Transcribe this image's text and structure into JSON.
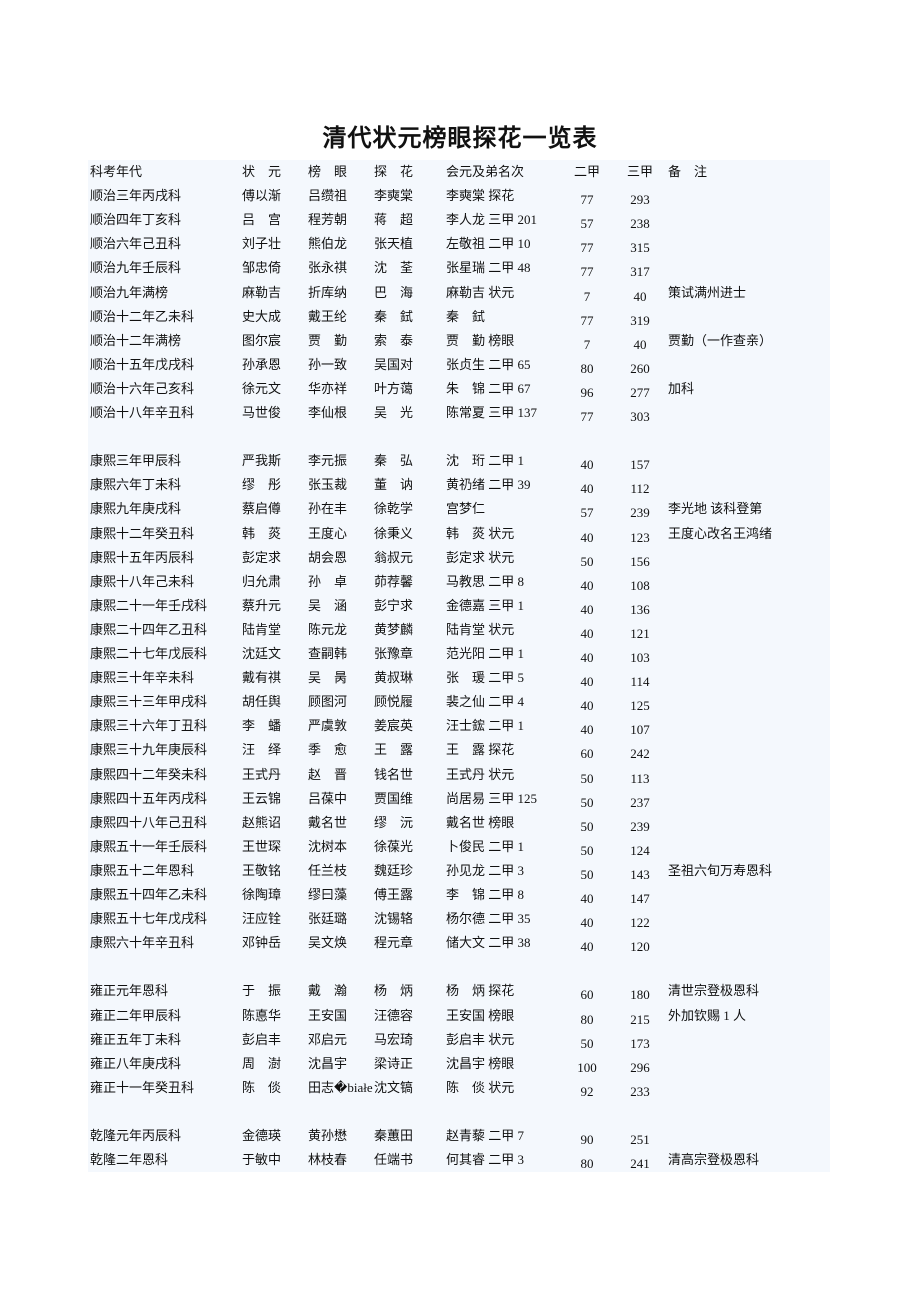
{
  "title": "清代状元榜眼探花一览表",
  "header": [
    "科考年代",
    "状　元",
    "榜　眼",
    "探　花",
    "会元及弟名次",
    "二甲",
    "三甲",
    "备　注"
  ],
  "sections": [
    {
      "rows": [
        [
          "顺治三年丙戌科",
          "傅以渐",
          "吕缵祖",
          "李奭棠",
          "李奭棠 探花",
          "77",
          "293",
          ""
        ],
        [
          "顺治四年丁亥科",
          "吕　宫",
          "程芳朝",
          "蒋　超",
          "李人龙 三甲 201",
          "57",
          "238",
          ""
        ],
        [
          "顺治六年己丑科",
          "刘子壮",
          "熊伯龙",
          "张天植",
          "左敬祖 二甲 10",
          "77",
          "315",
          ""
        ],
        [
          "顺治九年壬辰科",
          "邹忠倚",
          "张永祺",
          "沈　荃",
          "张星瑞 二甲 48",
          "77",
          "317",
          ""
        ],
        [
          "顺治九年满榜",
          "麻勒吉",
          "折库纳",
          "巴　海",
          "麻勒吉 状元",
          "7",
          "40",
          "策试满州进士"
        ],
        [
          "顺治十二年乙未科",
          "史大成",
          "戴王纶",
          "秦　鉽",
          "秦　鉽",
          "77",
          "319",
          ""
        ],
        [
          "顺治十二年满榜",
          "图尔宸",
          "贾　勤",
          "索　泰",
          "贾　勤 榜眼",
          "7",
          "40",
          "贾勤（一作查亲）"
        ],
        [
          "顺治十五年戊戌科",
          "孙承恩",
          "孙一致",
          "吴国对",
          "张贞生 二甲 65",
          "80",
          "260",
          ""
        ],
        [
          "顺治十六年己亥科",
          "徐元文",
          "华亦祥",
          "叶方蔼",
          "朱　锦 二甲 67",
          "96",
          "277",
          "加科"
        ],
        [
          "顺治十八年辛丑科",
          "马世俊",
          "李仙根",
          "吴　光",
          "陈常夏 三甲 137",
          "77",
          "303",
          ""
        ]
      ]
    },
    {
      "rows": [
        [
          "康熙三年甲辰科",
          "严我斯",
          "李元振",
          "秦　弘",
          "沈　珩 二甲 1",
          "40",
          "157",
          ""
        ],
        [
          "康熙六年丁未科",
          "缪　彤",
          "张玉裁",
          "董　讷",
          "黄礽绪 二甲 39",
          "40",
          "112",
          ""
        ],
        [
          "康熙九年庚戌科",
          "蔡启僔",
          "孙在丰",
          "徐乾学",
          "宫梦仁",
          "57",
          "239",
          "李光地 该科登第"
        ],
        [
          "康熙十二年癸丑科",
          "韩　菼",
          "王度心",
          "徐秉义",
          "韩　菼 状元",
          "40",
          "123",
          "王度心改名王鸿绪"
        ],
        [
          "康熙十五年丙辰科",
          "彭定求",
          "胡会恩",
          "翁叔元",
          "彭定求 状元",
          "50",
          "156",
          ""
        ],
        [
          "康熙十八年己未科",
          "归允肃",
          "孙　卓",
          "茆荐馨",
          "马教思 二甲 8",
          "40",
          "108",
          ""
        ],
        [
          "康熙二十一年壬戌科",
          "蔡升元",
          "吴　涵",
          "彭宁求",
          "金德嘉 三甲 1",
          "40",
          "136",
          ""
        ],
        [
          "康熙二十四年乙丑科",
          "陆肯堂",
          "陈元龙",
          "黄梦麟",
          "陆肯堂 状元",
          "40",
          "121",
          ""
        ],
        [
          "康熙二十七年戊辰科",
          "沈廷文",
          "查嗣韩",
          "张豫章",
          "范光阳 二甲 1",
          "40",
          "103",
          ""
        ],
        [
          "康熙三十年辛未科",
          "戴有祺",
          "吴　昺",
          "黄叔琳",
          "张　瑗 二甲 5",
          "40",
          "114",
          ""
        ],
        [
          "康熙三十三年甲戌科",
          "胡任舆",
          "顾图河",
          "顾悦履",
          "裴之仙 二甲 4",
          "40",
          "125",
          ""
        ],
        [
          "康熙三十六年丁丑科",
          "李　蟠",
          "严虞敦",
          "姜宸英",
          "汪士鋐 二甲 1",
          "40",
          "107",
          ""
        ],
        [
          "康熙三十九年庚辰科",
          "汪　绎",
          "季　愈",
          "王　露",
          "王　露 探花",
          "60",
          "242",
          ""
        ],
        [
          "康熙四十二年癸未科",
          "王式丹",
          "赵　晋",
          "钱名世",
          "王式丹 状元",
          "50",
          "113",
          ""
        ],
        [
          "康熙四十五年丙戌科",
          "王云锦",
          "吕葆中",
          "贾国维",
          "尚居易 三甲 125",
          "50",
          "237",
          ""
        ],
        [
          "康熙四十八年己丑科",
          "赵熊诏",
          "戴名世",
          "缪　沅",
          "戴名世 榜眼",
          "50",
          "239",
          ""
        ],
        [
          "康熙五十一年壬辰科",
          "王世琛",
          "沈树本",
          "徐葆光",
          "卜俊民 二甲 1",
          "50",
          "124",
          ""
        ],
        [
          "康熙五十二年恩科",
          "王敬铭",
          "任兰枝",
          "魏廷珍",
          "孙见龙 二甲 3",
          "50",
          "143",
          "圣祖六旬万寿恩科"
        ],
        [
          "康熙五十四年乙未科",
          "徐陶璋",
          "缪曰藻",
          "傅王露",
          "李　锦 二甲 8",
          "40",
          "147",
          ""
        ],
        [
          "康熙五十七年戊戌科",
          "汪应铨",
          "张廷璐",
          "沈锡辂",
          "杨尔德 二甲 35",
          "40",
          "122",
          ""
        ],
        [
          "康熙六十年辛丑科",
          "邓钟岳",
          "吴文焕",
          "程元章",
          "储大文 二甲 38",
          "40",
          "120",
          ""
        ]
      ]
    },
    {
      "rows": [
        [
          "雍正元年恩科",
          "于　振",
          "戴　瀚",
          "杨　炳",
          "杨　炳 探花",
          "60",
          "180",
          "清世宗登极恩科"
        ],
        [
          "雍正二年甲辰科",
          "陈悳华",
          "王安国",
          "汪德容",
          "王安国 榜眼",
          "80",
          "215",
          "外加钦赐 1 人"
        ],
        [
          "雍正五年丁未科",
          "彭启丰",
          "邓启元",
          "马宏琦",
          "彭启丰 状元",
          "50",
          "173",
          ""
        ],
        [
          "雍正八年庚戌科",
          "周　澍",
          "沈昌宇",
          "梁诗正",
          "沈昌宇 榜眼",
          "100",
          "296",
          ""
        ],
        [
          "雍正十一年癸丑科",
          "陈　倓",
          "田志�białe",
          "沈文镐",
          "陈　倓 状元",
          "92",
          "233",
          ""
        ]
      ]
    },
    {
      "rows": [
        [
          "乾隆元年丙辰科",
          "金德瑛",
          "黄孙懋",
          "秦蕙田",
          "赵青藜 二甲 7",
          "90",
          "251",
          ""
        ],
        [
          "乾隆二年恩科",
          "于敏中",
          "林枝春",
          "任端书",
          "何其睿 二甲 3",
          "80",
          "241",
          "清高宗登极恩科"
        ]
      ]
    }
  ]
}
